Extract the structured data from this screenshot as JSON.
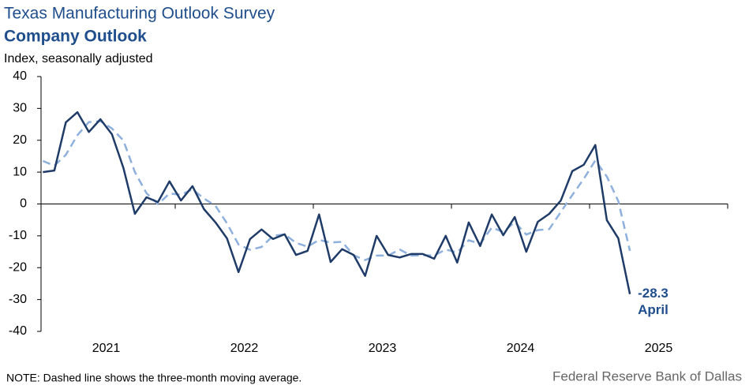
{
  "chart_data": {
    "type": "line",
    "title": "Texas Manufacturing Outlook Survey",
    "subtitle": "Company Outlook",
    "y_label": "Index, seasonally adjusted",
    "note": "NOTE: Dashed line shows the three-month  moving average.",
    "source": "Federal Reserve Bank of Dallas",
    "annotation": "April",
    "x": [
      2021.042,
      2021.125,
      2021.208,
      2021.292,
      2021.375,
      2021.458,
      2021.542,
      2021.625,
      2021.708,
      2021.792,
      2021.875,
      2021.958,
      2022.042,
      2022.125,
      2022.208,
      2022.292,
      2022.375,
      2022.458,
      2022.542,
      2022.625,
      2022.708,
      2022.792,
      2022.875,
      2022.958,
      2023.042,
      2023.125,
      2023.208,
      2023.292,
      2023.375,
      2023.458,
      2023.542,
      2023.625,
      2023.708,
      2023.792,
      2023.875,
      2023.958,
      2024.042,
      2024.125,
      2024.208,
      2024.292,
      2024.375,
      2024.458,
      2024.542,
      2024.625,
      2024.708,
      2024.792,
      2024.875,
      2024.958,
      2025.042,
      2025.125,
      2025.208,
      2025.292
    ],
    "series": [
      {
        "name": "Company outlook",
        "color": "#1f3b68",
        "dashed": false,
        "values": [
          10.0,
          10.5,
          25.6,
          28.8,
          22.6,
          26.6,
          21.9,
          11.3,
          -3.1,
          2.1,
          0.6,
          7.1,
          1.1,
          5.6,
          -1.6,
          -5.8,
          -10.8,
          -21.4,
          -11.0,
          -8.0,
          -11.0,
          -9.5,
          -16.0,
          -14.7,
          -3.3,
          -18.2,
          -14.2,
          -16.0,
          -22.6,
          -10.0,
          -16.0,
          -16.8,
          -15.7,
          -15.7,
          -17.2,
          -10.0,
          -18.4,
          -5.8,
          -13.2,
          -3.3,
          -9.8,
          -4.1,
          -15.0,
          -5.6,
          -3.1,
          1.1,
          10.3,
          12.3,
          18.5,
          -5.1,
          -10.8,
          -28.3
        ]
      },
      {
        "name": "Three-month moving average",
        "color": "#8eb0dd",
        "dashed": true,
        "values": [
          13.5,
          12.0,
          15.4,
          21.6,
          25.7,
          26.0,
          23.7,
          19.9,
          10.0,
          3.4,
          -0.1,
          3.3,
          2.9,
          4.6,
          1.7,
          -0.6,
          -6.1,
          -12.7,
          -14.4,
          -13.5,
          -10.0,
          -9.5,
          -12.2,
          -13.4,
          -11.3,
          -12.1,
          -11.9,
          -16.1,
          -17.6,
          -16.2,
          -16.2,
          -14.3,
          -16.2,
          -16.1,
          -16.2,
          -14.3,
          -15.2,
          -11.4,
          -12.5,
          -7.4,
          -8.8,
          -5.7,
          -9.6,
          -8.2,
          -7.9,
          -2.5,
          2.8,
          7.9,
          13.7,
          8.6,
          0.9,
          -14.7
        ]
      }
    ],
    "xlim": [
      2021,
      2026
    ],
    "xticks": [
      {
        "value": 2021.5,
        "label": "2021"
      },
      {
        "value": 2022.5,
        "label": "2022"
      },
      {
        "value": 2023.5,
        "label": "2023"
      },
      {
        "value": 2024.5,
        "label": "2024"
      },
      {
        "value": 2025.5,
        "label": "2025"
      }
    ],
    "ylim": [
      -40,
      40
    ],
    "yticks": [
      -40,
      -30,
      -20,
      -10,
      0,
      10,
      20,
      30,
      40
    ],
    "grid": false
  }
}
